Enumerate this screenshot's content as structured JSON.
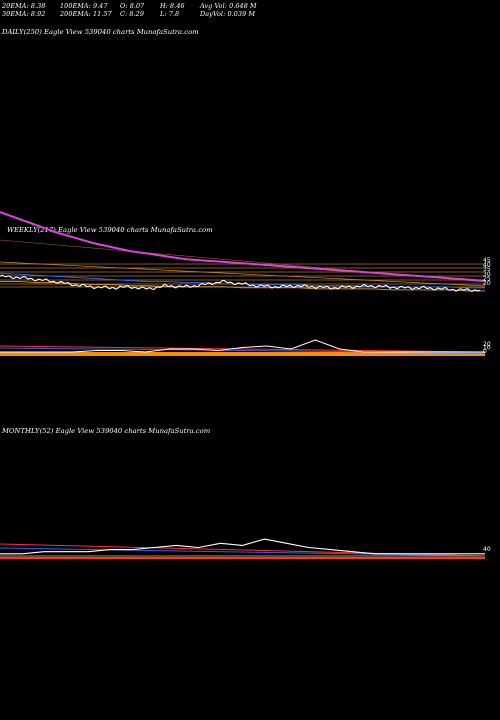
{
  "stats": {
    "ema20": "20EMA: 8.38",
    "ema100": "100EMA: 9.47",
    "open": "O: 8.07",
    "high": "H: 8.46",
    "avg_vol": "Avg Vol: 0.648  M",
    "ema30": "30EMA: 8.92",
    "ema200": "200EMA: 11.57",
    "close": "C: 8.29",
    "low": "L: 7.8",
    "day_vol": "DayVol: 0.039 M"
  },
  "panels": {
    "daily_label": "DAILY(250) Eagle  View  539040  charts MunafaSutra.com",
    "weekly_label": "WEEKLY(217) Eagle  View  539040  charts MunafaSutra.com",
    "monthly_label": "MONTHLY(52) Eagle  View  539040  charts MunafaSutra.com"
  },
  "colors": {
    "background": "#000000",
    "price": "#ffffff",
    "ema_magenta": "#e040e0",
    "ema_orange": "#d08a30",
    "ema_blue": "#3060ff",
    "ema_red": "#ff3030",
    "volume_bar": "#ff8c00"
  },
  "chart_data": [
    {
      "panel": "weekly",
      "type": "line",
      "yticks": [
        "45",
        "40",
        "35",
        "30",
        "25",
        "20"
      ],
      "series": [
        {
          "values": [
            30,
            29,
            27,
            25,
            22,
            20,
            19,
            20,
            18,
            21,
            20,
            22,
            25,
            23,
            21,
            20,
            21,
            20,
            19,
            20,
            21,
            20,
            19,
            19,
            18,
            17,
            17
          ]
        },
        {
          "values": [
            75,
            70,
            65,
            60,
            56,
            52,
            49,
            46,
            44,
            42,
            40,
            39,
            38,
            37,
            36,
            35,
            34,
            33,
            32,
            31,
            30,
            29,
            28,
            27,
            26,
            25,
            24
          ]
        },
        {
          "values": [
            33,
            32,
            31,
            30,
            29,
            28,
            27,
            26,
            25,
            25,
            24,
            24,
            23,
            23,
            22,
            22,
            22,
            21,
            21,
            21,
            20,
            20,
            20,
            20,
            20,
            19,
            19
          ]
        },
        {
          "values": [
            27,
            27,
            26,
            26,
            25,
            24,
            24,
            23,
            23,
            22,
            22,
            22,
            22,
            21,
            21,
            21,
            21,
            20,
            20,
            20,
            20,
            19,
            19,
            19,
            19,
            18,
            18
          ]
        }
      ]
    },
    {
      "panel": "weekly-lower",
      "type": "line",
      "yticks": [
        "20",
        "10",
        "0"
      ],
      "series": [
        {
          "values": [
            0,
            0,
            0,
            0,
            1,
            1,
            0,
            2,
            2,
            1,
            3,
            4,
            2,
            8,
            2,
            0,
            0,
            0,
            0,
            0,
            0
          ]
        }
      ]
    },
    {
      "panel": "monthly",
      "type": "line",
      "yticks": [
        "40"
      ],
      "series": [
        {
          "values": [
            2,
            2,
            3,
            3,
            3,
            4,
            4,
            5,
            6,
            5,
            7,
            6,
            9,
            7,
            5,
            4,
            3,
            2,
            2,
            2,
            2,
            2,
            2
          ]
        }
      ]
    }
  ]
}
